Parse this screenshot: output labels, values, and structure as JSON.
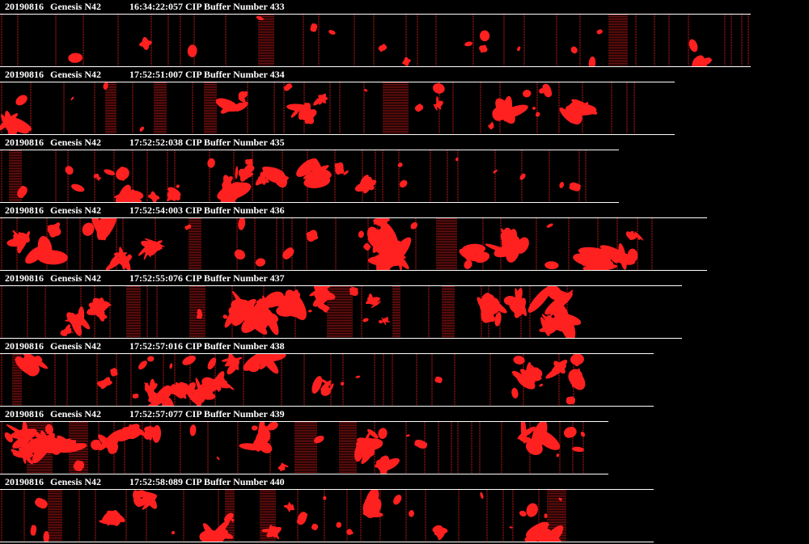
{
  "colors": {
    "background": "#000000",
    "text": "#ffffff",
    "rule": "#ffffff",
    "particle": "#ff2020"
  },
  "buffers": [
    {
      "date": "20190816",
      "probe": "Genesis N42",
      "time": "16:34:22:057",
      "label": "CIP Buffer Number",
      "number": "433",
      "density": 0.25
    },
    {
      "date": "20190816",
      "probe": "Genesis N42",
      "time": "17:52:51:007",
      "label": "CIP Buffer Number",
      "number": "434",
      "density": 0.45
    },
    {
      "date": "20190816",
      "probe": "Genesis N42",
      "time": "17:52:52:038",
      "label": "CIP Buffer Number",
      "number": "435",
      "density": 0.75
    },
    {
      "date": "20190816",
      "probe": "Genesis N42",
      "time": "17:52:54:003",
      "label": "CIP Buffer Number",
      "number": "436",
      "density": 0.6
    },
    {
      "date": "20190816",
      "probe": "Genesis N42",
      "time": "17:52:55:076",
      "label": "CIP Buffer Number",
      "number": "437",
      "density": 0.7
    },
    {
      "date": "20190816",
      "probe": "Genesis N42",
      "time": "17:52:57:016",
      "label": "CIP Buffer Number",
      "number": "438",
      "density": 0.7
    },
    {
      "date": "20190816",
      "probe": "Genesis N42",
      "time": "17:52:57:077",
      "label": "CIP Buffer Number",
      "number": "439",
      "density": 0.75
    },
    {
      "date": "20190816",
      "probe": "Genesis N42",
      "time": "17:52:58:089",
      "label": "CIP Buffer Number",
      "number": "440",
      "density": 0.7
    }
  ]
}
